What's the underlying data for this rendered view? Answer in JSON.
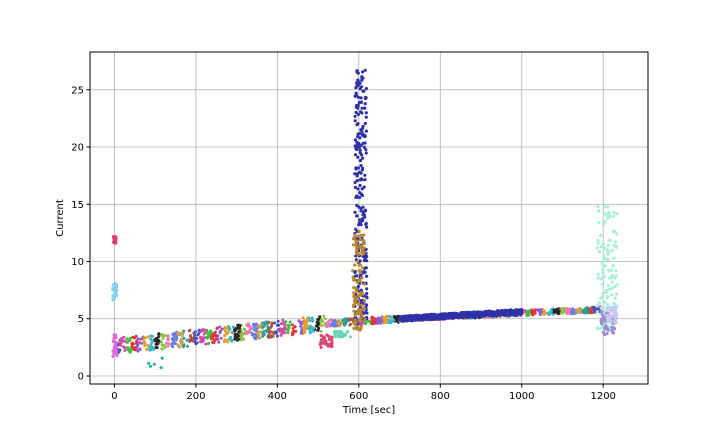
{
  "chart_data": {
    "type": "scatter",
    "title": "",
    "xlabel": "Time [sec]",
    "ylabel": "Current",
    "xlim": [
      -60,
      1310
    ],
    "ylim": [
      -0.7,
      28.3
    ],
    "xticks": [
      0,
      200,
      400,
      600,
      800,
      1000,
      1200
    ],
    "yticks": [
      0,
      5,
      10,
      15,
      20,
      25
    ],
    "xtick_labels": [
      "0",
      "200",
      "400",
      "600",
      "800",
      "1000",
      "1200"
    ],
    "ytick_labels": [
      "0",
      "5",
      "10",
      "15",
      "20",
      "25"
    ],
    "grid": true,
    "legend": "none",
    "palette": [
      "#3f51c6",
      "#d94aa8",
      "#3fbf3f",
      "#e0343b",
      "#8f5bd6",
      "#e0a030",
      "#38b8c8",
      "#262626",
      "#8bc34a",
      "#f07ab0",
      "#6a7fe0",
      "#c8a050",
      "#2aa198",
      "#b05040"
    ],
    "series": [
      {
        "description_role": "baseline",
        "color": "multicolor",
        "segments": [
          {
            "x_start": 0,
            "x_end": 520,
            "y_start": 2.6,
            "y_end": 4.6,
            "spread": 1.4
          },
          {
            "x_start": 520,
            "x_end": 700,
            "y_start": 4.6,
            "y_end": 5.0,
            "spread": 0.6
          },
          {
            "x_start": 700,
            "x_end": 1000,
            "y_start": 5.0,
            "y_end": 5.5,
            "spread": 0.5
          },
          {
            "x_start": 1000,
            "x_end": 1200,
            "y_start": 5.5,
            "y_end": 5.8,
            "spread": 0.5
          }
        ]
      },
      {
        "color": "#3031a6",
        "x": [
          590,
          620
        ],
        "y": [
          5.0,
          26.8
        ],
        "kind": "spike"
      },
      {
        "color": "#b8862c",
        "x": [
          585,
          615
        ],
        "y": [
          4.0,
          12.7
        ],
        "kind": "spike"
      },
      {
        "color": "#3031a6",
        "x": [
          700,
          1000
        ],
        "y": [
          5.0,
          5.6
        ],
        "kind": "band"
      },
      {
        "color": "#a8f0dc",
        "x": [
          1185,
          1235
        ],
        "y": [
          4.0,
          14.8
        ],
        "kind": "spike"
      },
      {
        "color": "#9d8ad0",
        "x": [
          1195,
          1230
        ],
        "y": [
          3.6,
          5.6
        ],
        "kind": "cluster"
      },
      {
        "color": "#c8c6f0",
        "x": [
          1210,
          1235
        ],
        "y": [
          4.6,
          6.0
        ],
        "kind": "cluster"
      },
      {
        "color": "#e03a72",
        "x": [
          -2,
          4
        ],
        "y": [
          11.6,
          12.2
        ],
        "kind": "cluster"
      },
      {
        "color": "#8ad0e8",
        "x": [
          -4,
          6
        ],
        "y": [
          6.6,
          8.1
        ],
        "kind": "cluster"
      },
      {
        "color": "#e06ad8",
        "x": [
          -4,
          6
        ],
        "y": [
          1.7,
          3.6
        ],
        "kind": "cluster"
      },
      {
        "color": "#d84a74",
        "x": [
          505,
          535
        ],
        "y": [
          2.5,
          3.6
        ],
        "kind": "cluster"
      },
      {
        "color": "#6ad6b8",
        "x": [
          540,
          580
        ],
        "y": [
          3.4,
          3.9
        ],
        "kind": "cluster"
      },
      {
        "color": "#2ab4a4",
        "x": [
          80,
          130
        ],
        "y": [
          0.6,
          1.6
        ],
        "kind": "sparse"
      }
    ]
  }
}
